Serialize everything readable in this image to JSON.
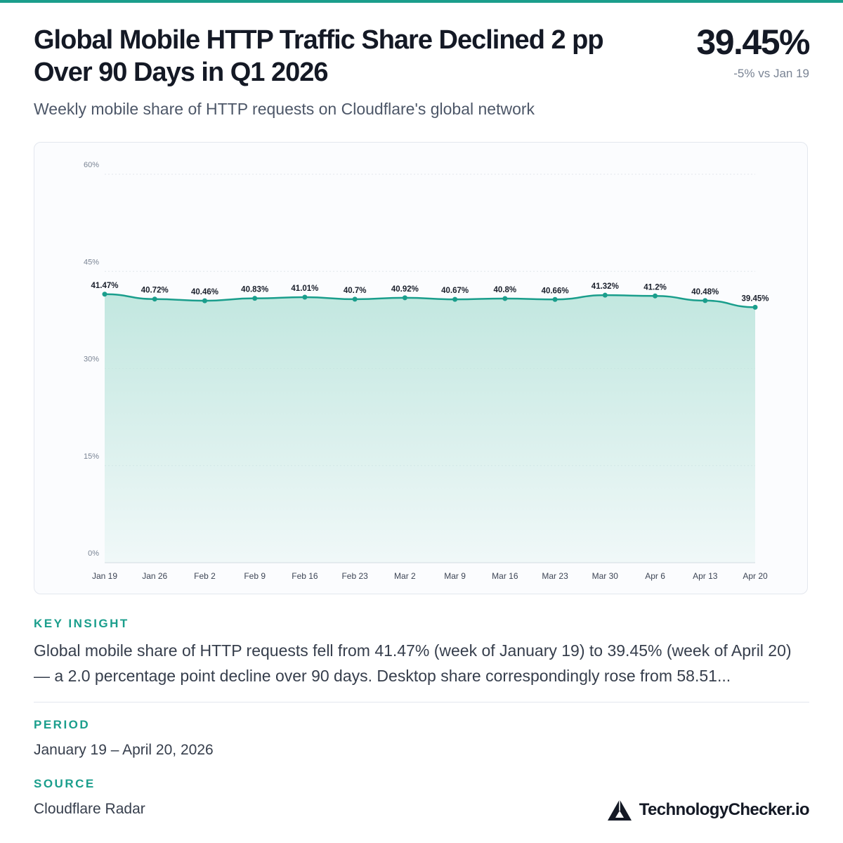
{
  "header": {
    "title": "Global Mobile HTTP Traffic Share Declined 2 pp Over 90 Days in Q1 2026",
    "subtitle": "Weekly mobile share of HTTP requests on Cloudflare's global network",
    "headline_value": "39.45%",
    "headline_delta": "-5% vs Jan 19"
  },
  "chart_data": {
    "type": "area",
    "title": "",
    "xlabel": "",
    "ylabel": "",
    "categories": [
      "Jan 19",
      "Jan 26",
      "Feb 2",
      "Feb 9",
      "Feb 16",
      "Feb 23",
      "Mar 2",
      "Mar 9",
      "Mar 16",
      "Mar 23",
      "Mar 30",
      "Apr 6",
      "Apr 13",
      "Apr 20"
    ],
    "series": [
      {
        "values": [
          41.47,
          40.72,
          40.46,
          40.83,
          41.01,
          40.7,
          40.92,
          40.67,
          40.8,
          40.66,
          41.32,
          41.2,
          40.48,
          39.45
        ],
        "labels": [
          "41.47%",
          "40.72%",
          "40.46%",
          "40.83%",
          "41.01%",
          "40.7%",
          "40.92%",
          "40.67%",
          "40.8%",
          "40.66%",
          "41.32%",
          "41.2%",
          "40.48%",
          "39.45%"
        ]
      }
    ],
    "ylim": [
      0,
      60
    ],
    "yticks": [
      0,
      15,
      30,
      45,
      60
    ],
    "ytick_labels": [
      "0%",
      "15%",
      "30%",
      "45%",
      "60%"
    ],
    "grid": true,
    "legend": "none",
    "line_color": "#1a9e8c",
    "fill_color": "#bfe6de"
  },
  "insight": {
    "label": "KEY INSIGHT",
    "text": "Global mobile share of HTTP requests fell from 41.47% (week of January 19) to 39.45% (week of April 20) — a 2.0 percentage point decline over 90 days. Desktop share correspondingly rose from 58.51..."
  },
  "period": {
    "label": "PERIOD",
    "value": "January 19 – April 20, 2026"
  },
  "source": {
    "label": "SOURCE",
    "value": "Cloudflare Radar"
  },
  "brand": {
    "name": "TechnologyChecker.io",
    "logo_icon": "triangle-logo-icon"
  },
  "colors": {
    "accent": "#1a9e8c",
    "text": "#141925",
    "muted": "#7a8494"
  }
}
